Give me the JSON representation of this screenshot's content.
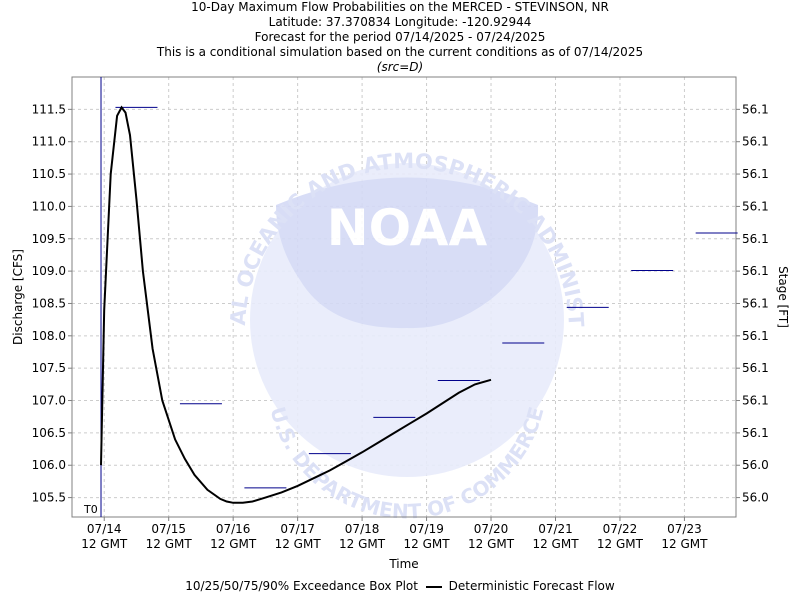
{
  "header": {
    "line1": "10-Day Maximum Flow Probabilities on the MERCED - STEVINSON, NR",
    "line2": "Latitude: 37.370834 Longitude: -120.92944",
    "line3": "Forecast for the period 07/14/2025 - 07/24/2025",
    "line4": "This is a conditional simulation based on the current conditions as of 07/14/2025",
    "line5": "(src=D)"
  },
  "watermark": {
    "agency": "NOAA",
    "ring_top": "NATIONAL OCEANIC AND ATMOSPHERIC ADMINISTRATION",
    "ring_bottom": "U.S. DEPARTMENT OF COMMERCE"
  },
  "legend": {
    "box_label": "10/25/50/75/90% Exceedance Box Plot",
    "line_label": "Deterministic Forecast Flow"
  },
  "colors": {
    "forecast": "#000000",
    "box": "#00008b",
    "grid": "#cccccc",
    "t0": "#00008b"
  },
  "chart_data": {
    "type": "line",
    "xlabel": "Time",
    "ylabel": "Discharge [CFS]",
    "y2label": "Stage [FT]",
    "t0_label": "T0",
    "ylim": [
      105.2,
      112.0
    ],
    "xlim": [
      -0.5,
      9.8
    ],
    "grid": true,
    "x_ticks": [
      {
        "v": 0,
        "l1": "07/14",
        "l2": "12 GMT"
      },
      {
        "v": 1,
        "l1": "07/15",
        "l2": "12 GMT"
      },
      {
        "v": 2,
        "l1": "07/16",
        "l2": "12 GMT"
      },
      {
        "v": 3,
        "l1": "07/17",
        "l2": "12 GMT"
      },
      {
        "v": 4,
        "l1": "07/18",
        "l2": "12 GMT"
      },
      {
        "v": 5,
        "l1": "07/19",
        "l2": "12 GMT"
      },
      {
        "v": 6,
        "l1": "07/20",
        "l2": "12 GMT"
      },
      {
        "v": 7,
        "l1": "07/21",
        "l2": "12 GMT"
      },
      {
        "v": 8,
        "l1": "07/22",
        "l2": "12 GMT"
      },
      {
        "v": 9,
        "l1": "07/23",
        "l2": "12 GMT"
      }
    ],
    "y_ticks": [
      {
        "v": 105.5,
        "label": "105.5",
        "stage": "56.0"
      },
      {
        "v": 106.0,
        "label": "106.0",
        "stage": "56.0"
      },
      {
        "v": 106.5,
        "label": "106.5",
        "stage": "56.1"
      },
      {
        "v": 107.0,
        "label": "107.0",
        "stage": "56.1"
      },
      {
        "v": 107.5,
        "label": "107.5",
        "stage": "56.1"
      },
      {
        "v": 108.0,
        "label": "108.0",
        "stage": "56.1"
      },
      {
        "v": 108.5,
        "label": "108.5",
        "stage": "56.1"
      },
      {
        "v": 109.0,
        "label": "109.0",
        "stage": "56.1"
      },
      {
        "v": 109.5,
        "label": "109.5",
        "stage": "56.1"
      },
      {
        "v": 110.0,
        "label": "110.0",
        "stage": "56.1"
      },
      {
        "v": 110.5,
        "label": "110.5",
        "stage": "56.1"
      },
      {
        "v": 111.0,
        "label": "111.0",
        "stage": "56.1"
      },
      {
        "v": 111.5,
        "label": "111.5",
        "stage": "56.1"
      }
    ],
    "t0": -0.05,
    "series": [
      {
        "name": "Deterministic Forecast Flow",
        "x": [
          -0.05,
          0.0,
          0.1,
          0.2,
          0.27,
          0.33,
          0.4,
          0.5,
          0.6,
          0.75,
          0.9,
          1.0,
          1.1,
          1.25,
          1.4,
          1.6,
          1.8,
          1.9,
          2.0,
          2.15,
          2.3,
          2.5,
          2.75,
          3.0,
          3.25,
          3.5,
          3.75,
          4.0,
          4.25,
          4.5,
          4.75,
          5.0,
          5.25,
          5.5,
          5.75,
          6.0
        ],
        "values": [
          106.0,
          108.4,
          110.5,
          111.4,
          111.53,
          111.45,
          111.1,
          110.1,
          109.0,
          107.8,
          107.0,
          106.7,
          106.4,
          106.1,
          105.85,
          105.62,
          105.48,
          105.44,
          105.42,
          105.42,
          105.44,
          105.5,
          105.58,
          105.68,
          105.8,
          105.92,
          106.06,
          106.2,
          106.35,
          106.5,
          106.65,
          106.8,
          106.96,
          107.12,
          107.25,
          107.32
        ]
      }
    ],
    "boxes": [
      {
        "x": 0.5,
        "value": 111.53
      },
      {
        "x": 1.5,
        "value": 106.95
      },
      {
        "x": 2.5,
        "value": 105.65
      },
      {
        "x": 3.5,
        "value": 106.18
      },
      {
        "x": 4.5,
        "value": 106.74
      },
      {
        "x": 5.5,
        "value": 107.31
      },
      {
        "x": 6.5,
        "value": 107.89
      },
      {
        "x": 7.5,
        "value": 108.44
      },
      {
        "x": 8.5,
        "value": 109.01
      },
      {
        "x": 9.5,
        "value": 109.59
      }
    ]
  }
}
